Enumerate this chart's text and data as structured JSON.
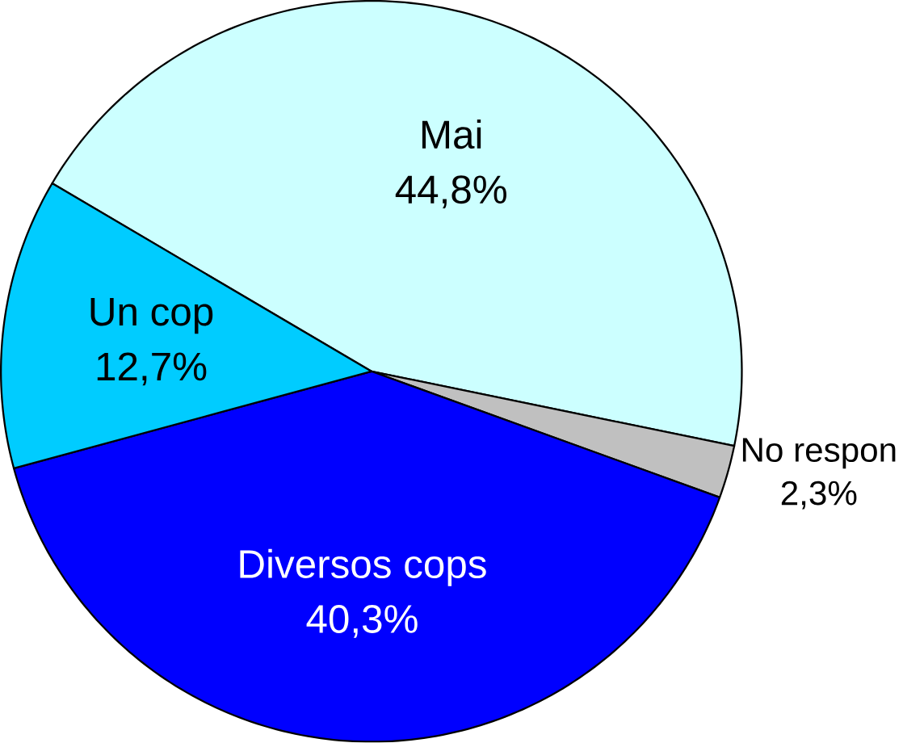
{
  "chart_data": {
    "type": "pie",
    "categories": [
      "Mai",
      "No respon",
      "Diversos cops",
      "Un cop"
    ],
    "values": [
      44.8,
      2.3,
      40.3,
      12.7
    ],
    "colors": [
      "#ccffff",
      "#c0c0c0",
      "#0000ff",
      "#00ccff"
    ],
    "value_labels": [
      "44,8%",
      "2,3%",
      "40,3%",
      "12,7%"
    ]
  }
}
